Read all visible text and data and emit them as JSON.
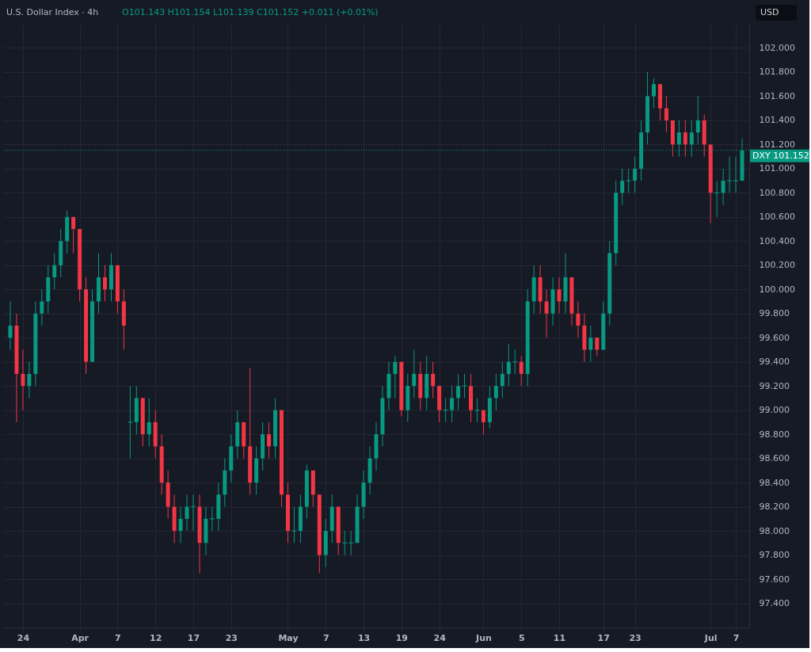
{
  "chart_data": {
    "type": "candlestick",
    "title": "U.S. Dollar Index · 4h",
    "ylabel": "USD",
    "annotations": [
      "O101.143 H101.154 L101.139 C101.152 +0.011 (+0.01%)"
    ],
    "colors": [
      "#089981",
      "#f23645",
      "#f23645",
      "#089981",
      "#089981",
      "#089981",
      "#089981",
      "#089981",
      "#089981",
      "#089981",
      "#f23645",
      "#f23645",
      "#f23645",
      "#089981",
      "#089981",
      "#f23645",
      "#089981",
      "#f23645",
      "#f23645",
      "#089981",
      "#089981",
      "#f23645",
      "#089981",
      "#f23645",
      "#f23645",
      "#f23645",
      "#f23645",
      "#089981",
      "#089981",
      "#089981",
      "#f23645",
      "#089981",
      "#089981",
      "#089981",
      "#089981",
      "#089981",
      "#089981",
      "#f23645",
      "#f23645",
      "#089981",
      "#089981",
      "#f23645",
      "#089981",
      "#f23645",
      "#f23645",
      "#089981",
      "#089981",
      "#089981",
      "#f23645",
      "#f23645",
      "#089981",
      "#089981",
      "#f23645",
      "#089981",
      "#089981",
      "#089981",
      "#089981",
      "#089981",
      "#089981",
      "#089981",
      "#089981",
      "#089981",
      "#f23645",
      "#089981",
      "#089981",
      "#f23645",
      "#089981",
      "#f23645",
      "#f23645",
      "#089981",
      "#089981",
      "#089981",
      "#089981",
      "#f23645",
      "#089981",
      "#f23645",
      "#089981",
      "#089981",
      "#089981",
      "#089981",
      "#089981",
      "#f23645",
      "#089981",
      "#089981",
      "#f23645",
      "#f23645",
      "#089981",
      "#f23645",
      "#089981",
      "#f23645",
      "#f23645",
      "#f23645",
      "#089981",
      "#f23645",
      "#089981",
      "#089981",
      "#089981",
      "#089981",
      "#089981",
      "#089981",
      "#089981",
      "#089981",
      "#089981",
      "#f23645",
      "#f23645",
      "#f23645",
      "#089981",
      "#f23645",
      "#089981",
      "#089981",
      "#f23645",
      "#f23645",
      "#089981",
      "#089981",
      "#089981",
      "#089981",
      "#089981"
    ],
    "grid": true,
    "ylim": [
      97.2,
      102.2
    ],
    "yticks": [
      {
        "value": 97.4,
        "label": "97.400"
      },
      {
        "value": 97.6,
        "label": "97.600"
      },
      {
        "value": 97.8,
        "label": "97.800"
      },
      {
        "value": 98,
        "label": "98.000"
      },
      {
        "value": 98.2,
        "label": "98.200"
      },
      {
        "value": 98.4,
        "label": "98.400"
      },
      {
        "value": 98.6,
        "label": "98.600"
      },
      {
        "value": 98.8,
        "label": "98.800"
      },
      {
        "value": 99,
        "label": "99.000"
      },
      {
        "value": 99.2,
        "label": "99.200"
      },
      {
        "value": 99.4,
        "label": "99.400"
      },
      {
        "value": 99.6,
        "label": "99.600"
      },
      {
        "value": 99.8,
        "label": "99.800"
      },
      {
        "value": 100,
        "label": "100.000"
      },
      {
        "value": 100.2,
        "label": "100.200"
      },
      {
        "value": 100.4,
        "label": "100.400"
      },
      {
        "value": 100.6,
        "label": "100.600"
      },
      {
        "value": 100.8,
        "label": "100.800"
      },
      {
        "value": 101,
        "label": "101.000"
      },
      {
        "value": 101.2,
        "label": "101.200"
      },
      {
        "value": 101.4,
        "label": "101.400"
      },
      {
        "value": 101.6,
        "label": "101.600"
      },
      {
        "value": 101.8,
        "label": "101.800"
      },
      {
        "value": 102,
        "label": "102.000"
      }
    ],
    "ref_lines": [
      {
        "axis": "y",
        "value": 101.152,
        "label": "DXY 101.152",
        "color": "#089981",
        "line_style": "dotted"
      }
    ],
    "categories": [
      null,
      null,
      "24",
      null,
      null,
      null,
      null,
      null,
      null,
      null,
      null,
      "Apr",
      null,
      null,
      null,
      null,
      null,
      "7",
      null,
      null,
      null,
      null,
      null,
      "12",
      null,
      null,
      null,
      null,
      null,
      "17",
      null,
      null,
      null,
      null,
      null,
      "23",
      null,
      null,
      null,
      null,
      null,
      null,
      null,
      null,
      "May",
      null,
      null,
      null,
      null,
      null,
      "7",
      null,
      null,
      null,
      null,
      null,
      "13",
      null,
      null,
      null,
      null,
      null,
      "19",
      null,
      null,
      null,
      null,
      null,
      "24",
      null,
      null,
      null,
      null,
      null,
      null,
      "Jun",
      null,
      null,
      null,
      null,
      null,
      "5",
      null,
      null,
      null,
      null,
      null,
      "11",
      null,
      null,
      null,
      null,
      null,
      null,
      "17",
      null,
      null,
      null,
      null,
      "23",
      null,
      null,
      null,
      null,
      null,
      null,
      null,
      null,
      null,
      null,
      null,
      "Jul",
      null,
      null,
      null,
      "7",
      null
    ],
    "ohlc": [
      [
        99.6,
        99.9,
        99.5,
        99.7
      ],
      [
        99.7,
        99.8,
        98.9,
        99.3
      ],
      [
        99.3,
        99.5,
        99.0,
        99.2
      ],
      [
        99.2,
        99.4,
        99.1,
        99.3
      ],
      [
        99.3,
        99.9,
        99.2,
        99.8
      ],
      [
        99.8,
        100.0,
        99.7,
        99.9
      ],
      [
        99.9,
        100.2,
        99.8,
        100.1
      ],
      [
        100.1,
        100.3,
        100.0,
        100.2
      ],
      [
        100.2,
        100.5,
        100.1,
        100.4
      ],
      [
        100.4,
        100.65,
        100.3,
        100.6
      ],
      [
        100.6,
        100.6,
        100.3,
        100.5
      ],
      [
        100.5,
        100.5,
        99.9,
        100.0
      ],
      [
        100.0,
        100.1,
        99.3,
        99.4
      ],
      [
        99.4,
        100.0,
        99.4,
        99.9
      ],
      [
        99.9,
        100.3,
        99.8,
        100.1
      ],
      [
        100.1,
        100.2,
        99.9,
        100.0
      ],
      [
        100.0,
        100.3,
        99.9,
        100.2
      ],
      [
        100.2,
        100.2,
        99.8,
        99.9
      ],
      [
        99.9,
        100.0,
        99.5,
        99.7
      ],
      [
        98.9,
        99.2,
        98.6,
        98.9
      ],
      [
        98.9,
        99.2,
        98.8,
        99.1
      ],
      [
        99.1,
        99.1,
        98.7,
        98.8
      ],
      [
        98.8,
        99.1,
        98.7,
        98.9
      ],
      [
        98.9,
        99.0,
        98.6,
        98.7
      ],
      [
        98.7,
        98.8,
        98.3,
        98.4
      ],
      [
        98.4,
        98.5,
        98.1,
        98.2
      ],
      [
        98.2,
        98.3,
        97.9,
        98.0
      ],
      [
        98.0,
        98.2,
        97.9,
        98.1
      ],
      [
        98.1,
        98.3,
        98.0,
        98.2
      ],
      [
        98.2,
        98.3,
        98.0,
        98.2
      ],
      [
        98.2,
        98.3,
        97.65,
        97.9
      ],
      [
        97.9,
        98.2,
        97.8,
        98.1
      ],
      [
        98.1,
        98.2,
        98.0,
        98.1
      ],
      [
        98.1,
        98.4,
        98.0,
        98.3
      ],
      [
        98.3,
        98.6,
        98.2,
        98.5
      ],
      [
        98.5,
        98.8,
        98.4,
        98.7
      ],
      [
        98.7,
        99.0,
        98.6,
        98.9
      ],
      [
        98.9,
        98.9,
        98.6,
        98.7
      ],
      [
        98.7,
        99.35,
        98.3,
        98.4
      ],
      [
        98.4,
        98.7,
        98.3,
        98.6
      ],
      [
        98.6,
        98.9,
        98.5,
        98.8
      ],
      [
        98.8,
        98.9,
        98.6,
        98.7
      ],
      [
        98.7,
        99.1,
        98.6,
        99.0
      ],
      [
        99.0,
        99.0,
        98.2,
        98.3
      ],
      [
        98.3,
        98.4,
        97.9,
        98.0
      ],
      [
        98.0,
        98.2,
        97.9,
        98.0
      ],
      [
        98.0,
        98.3,
        97.9,
        98.2
      ],
      [
        98.2,
        98.55,
        98.1,
        98.5
      ],
      [
        98.5,
        98.5,
        98.2,
        98.3
      ],
      [
        98.3,
        98.3,
        97.65,
        97.8
      ],
      [
        97.8,
        98.1,
        97.7,
        98.0
      ],
      [
        98.0,
        98.3,
        97.9,
        98.2
      ],
      [
        98.2,
        98.2,
        97.8,
        97.9
      ],
      [
        97.9,
        98.0,
        97.8,
        97.9
      ],
      [
        97.9,
        98.0,
        97.8,
        97.9
      ],
      [
        97.9,
        98.3,
        97.9,
        98.2
      ],
      [
        98.2,
        98.5,
        98.1,
        98.4
      ],
      [
        98.4,
        98.7,
        98.3,
        98.6
      ],
      [
        98.6,
        98.9,
        98.5,
        98.8
      ],
      [
        98.8,
        99.2,
        98.7,
        99.1
      ],
      [
        99.1,
        99.4,
        99.0,
        99.3
      ],
      [
        99.3,
        99.45,
        99.1,
        99.4
      ],
      [
        99.4,
        99.4,
        98.95,
        99.0
      ],
      [
        99.0,
        99.3,
        98.9,
        99.2
      ],
      [
        99.2,
        99.5,
        99.1,
        99.3
      ],
      [
        99.3,
        99.4,
        99.0,
        99.1
      ],
      [
        99.1,
        99.45,
        99.0,
        99.3
      ],
      [
        99.3,
        99.4,
        99.1,
        99.2
      ],
      [
        99.2,
        99.2,
        98.9,
        99.0
      ],
      [
        99.0,
        99.1,
        98.9,
        99.0
      ],
      [
        99.0,
        99.2,
        98.9,
        99.1
      ],
      [
        99.1,
        99.3,
        99.0,
        99.2
      ],
      [
        99.2,
        99.3,
        99.1,
        99.2
      ],
      [
        99.2,
        99.3,
        98.9,
        99.0
      ],
      [
        99.0,
        99.1,
        98.9,
        99.0
      ],
      [
        99.0,
        99.0,
        98.8,
        98.9
      ],
      [
        98.9,
        99.2,
        98.85,
        99.1
      ],
      [
        99.1,
        99.3,
        99.0,
        99.2
      ],
      [
        99.2,
        99.4,
        99.1,
        99.3
      ],
      [
        99.3,
        99.55,
        99.2,
        99.4
      ],
      [
        99.4,
        99.5,
        99.3,
        99.4
      ],
      [
        99.4,
        99.45,
        99.2,
        99.3
      ],
      [
        99.3,
        100.0,
        99.2,
        99.9
      ],
      [
        99.9,
        100.2,
        99.8,
        100.1
      ],
      [
        100.1,
        100.2,
        99.8,
        99.9
      ],
      [
        99.9,
        100.0,
        99.6,
        99.8
      ],
      [
        99.8,
        100.1,
        99.7,
        100.0
      ],
      [
        100.0,
        100.1,
        99.8,
        99.9
      ],
      [
        99.9,
        100.3,
        99.8,
        100.1
      ],
      [
        100.1,
        100.1,
        99.7,
        99.8
      ],
      [
        99.8,
        99.9,
        99.6,
        99.7
      ],
      [
        99.7,
        99.8,
        99.4,
        99.5
      ],
      [
        99.5,
        99.7,
        99.4,
        99.6
      ],
      [
        99.6,
        99.6,
        99.45,
        99.5
      ],
      [
        99.5,
        99.9,
        99.5,
        99.8
      ],
      [
        99.8,
        100.4,
        99.7,
        100.3
      ],
      [
        100.3,
        100.9,
        100.2,
        100.8
      ],
      [
        100.8,
        101.0,
        100.7,
        100.9
      ],
      [
        100.9,
        101.0,
        100.8,
        100.9
      ],
      [
        100.9,
        101.1,
        100.8,
        101.0
      ],
      [
        101.0,
        101.4,
        100.9,
        101.3
      ],
      [
        101.3,
        101.8,
        101.2,
        101.6
      ],
      [
        101.6,
        101.75,
        101.5,
        101.7
      ],
      [
        101.7,
        101.7,
        101.4,
        101.5
      ],
      [
        101.5,
        101.6,
        101.3,
        101.4
      ],
      [
        101.4,
        101.4,
        101.1,
        101.2
      ],
      [
        101.2,
        101.4,
        101.1,
        101.3
      ],
      [
        101.3,
        101.4,
        101.1,
        101.2
      ],
      [
        101.2,
        101.4,
        101.1,
        101.3
      ],
      [
        101.3,
        101.6,
        101.2,
        101.4
      ],
      [
        101.4,
        101.45,
        101.1,
        101.2
      ],
      [
        101.2,
        101.2,
        100.55,
        100.8
      ],
      [
        100.8,
        100.9,
        100.6,
        100.8
      ],
      [
        100.8,
        101.0,
        100.7,
        100.9
      ],
      [
        100.9,
        101.1,
        100.8,
        100.9
      ],
      [
        100.9,
        101.1,
        100.8,
        100.9
      ],
      [
        100.9,
        101.25,
        100.9,
        101.15
      ]
    ]
  }
}
